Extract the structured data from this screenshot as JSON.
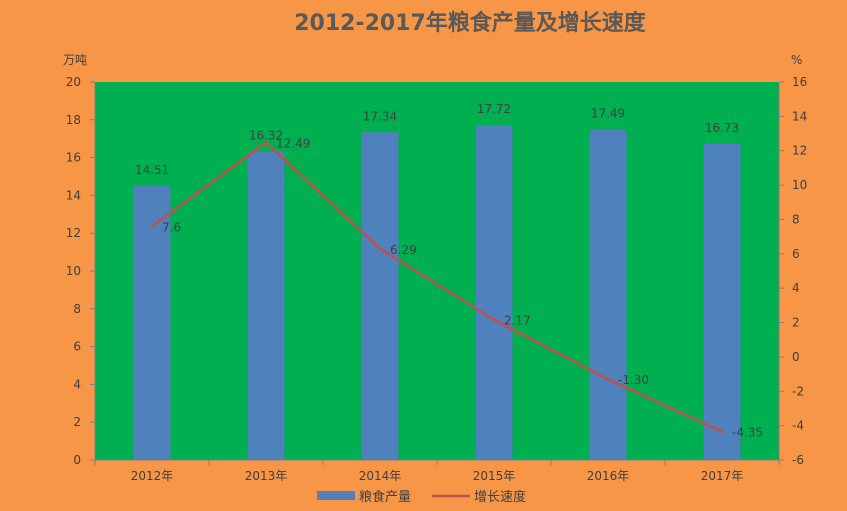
{
  "chart_data": {
    "type": "bar",
    "title": "2012-2017年粮食产量及增长速度",
    "categories": [
      "2012年",
      "2013年",
      "2014年",
      "2015年",
      "2016年",
      "2017年"
    ],
    "series": [
      {
        "name": "粮食产量",
        "type": "bar",
        "axis": "left",
        "color": "#4f81bd",
        "values": [
          14.51,
          16.32,
          17.34,
          17.72,
          17.49,
          16.73
        ]
      },
      {
        "name": "增长速度",
        "type": "line",
        "axis": "right",
        "color": "#c0504d",
        "values": [
          7.6,
          12.49,
          6.29,
          2.17,
          -1.3,
          -4.35
        ]
      }
    ],
    "y_left": {
      "unit": "万吨",
      "ylim": [
        0,
        20
      ],
      "ticks": [
        "0",
        "2",
        "4",
        "6",
        "8",
        "10",
        "12",
        "14",
        "16",
        "18",
        "20"
      ]
    },
    "y_right": {
      "unit": "%",
      "ylim": [
        -6,
        16
      ],
      "ticks": [
        "-6",
        "-4",
        "-2",
        "0",
        "2",
        "4",
        "6",
        "8",
        "10",
        "12",
        "14",
        "16"
      ]
    },
    "bar_labels": [
      "14.51",
      "16.32",
      "17.34",
      "17.72",
      "17.49",
      "16.73"
    ],
    "line_labels": [
      "7.6",
      "12.49",
      "6.29",
      "2.17",
      "-1.30",
      "-4.35"
    ],
    "grid": false,
    "legend_position": "bottom",
    "colors": {
      "background": "#f79646",
      "plot_area": "#00b050",
      "bar": "#4f81bd",
      "line": "#c0504d",
      "text": "#404040",
      "title": "#595959"
    }
  }
}
